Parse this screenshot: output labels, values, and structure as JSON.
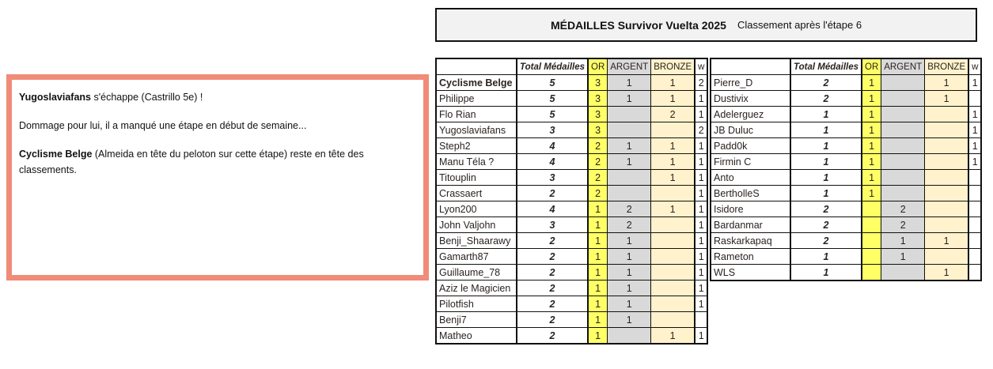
{
  "header": {
    "title": "MÉDAILLES Survivor Vuelta 2025",
    "subtitle": "Classement après l'étape 6"
  },
  "note": {
    "p1_bold": "Yugoslaviafans",
    "p1_rest": " s'échappe (Castrillo 5e) !",
    "p2": "Dommage pour lui, il a manqué une étape en début de semaine...",
    "p3_bold": "Cyclisme Belge",
    "p3_rest": " (Almeida en tête du peloton sur cette étape) reste en tête des classements."
  },
  "columns": {
    "name": "",
    "total": "Total Médailles",
    "or": "OR",
    "argent": "ARGENT",
    "bronze": "BRONZE",
    "w": "w"
  },
  "colors": {
    "or": "#ffff66",
    "argent": "#d9d9d9",
    "bronze": "#fff2cc",
    "note_border": "#f08c78"
  },
  "left_table": [
    {
      "name": "Cyclisme Belge",
      "total": "5",
      "or": "3",
      "argent": "1",
      "bronze": "1",
      "w": "2",
      "bold": true
    },
    {
      "name": "Philippe",
      "total": "5",
      "or": "3",
      "argent": "1",
      "bronze": "1",
      "w": "1"
    },
    {
      "name": "Flo Rian",
      "total": "5",
      "or": "3",
      "argent": "",
      "bronze": "2",
      "w": "1"
    },
    {
      "name": "Yugoslaviafans",
      "total": "3",
      "or": "3",
      "argent": "",
      "bronze": "",
      "w": "2"
    },
    {
      "name": "Steph2",
      "total": "4",
      "or": "2",
      "argent": "1",
      "bronze": "1",
      "w": "1"
    },
    {
      "name": "Manu Téla ?",
      "total": "4",
      "or": "2",
      "argent": "1",
      "bronze": "1",
      "w": "1"
    },
    {
      "name": "Titouplin",
      "total": "3",
      "or": "2",
      "argent": "",
      "bronze": "1",
      "w": "1"
    },
    {
      "name": "Crassaert",
      "total": "2",
      "or": "2",
      "argent": "",
      "bronze": "",
      "w": "1"
    },
    {
      "name": "Lyon200",
      "total": "4",
      "or": "1",
      "argent": "2",
      "bronze": "1",
      "w": "1"
    },
    {
      "name": "John Valjohn",
      "total": "3",
      "or": "1",
      "argent": "2",
      "bronze": "",
      "w": "1"
    },
    {
      "name": "Benji_Shaarawy",
      "total": "2",
      "or": "1",
      "argent": "1",
      "bronze": "",
      "w": "1"
    },
    {
      "name": "Gamarth87",
      "total": "2",
      "or": "1",
      "argent": "1",
      "bronze": "",
      "w": "1"
    },
    {
      "name": "Guillaume_78",
      "total": "2",
      "or": "1",
      "argent": "1",
      "bronze": "",
      "w": "1"
    },
    {
      "name": "Aziz le Magicien",
      "total": "2",
      "or": "1",
      "argent": "1",
      "bronze": "",
      "w": "1"
    },
    {
      "name": "Pilotfish",
      "total": "2",
      "or": "1",
      "argent": "1",
      "bronze": "",
      "w": "1"
    },
    {
      "name": "Benji7",
      "total": "2",
      "or": "1",
      "argent": "1",
      "bronze": "",
      "w": ""
    },
    {
      "name": "Matheo",
      "total": "2",
      "or": "1",
      "argent": "",
      "bronze": "1",
      "w": "1"
    }
  ],
  "right_table": [
    {
      "name": "Pierre_D",
      "total": "2",
      "or": "1",
      "argent": "",
      "bronze": "1",
      "w": "1"
    },
    {
      "name": "Dustivix",
      "total": "2",
      "or": "1",
      "argent": "",
      "bronze": "1",
      "w": ""
    },
    {
      "name": "Adelerguez",
      "total": "1",
      "or": "1",
      "argent": "",
      "bronze": "",
      "w": "1"
    },
    {
      "name": "JB Duluc",
      "total": "1",
      "or": "1",
      "argent": "",
      "bronze": "",
      "w": "1"
    },
    {
      "name": "Padd0k",
      "total": "1",
      "or": "1",
      "argent": "",
      "bronze": "",
      "w": "1"
    },
    {
      "name": "Firmin C",
      "total": "1",
      "or": "1",
      "argent": "",
      "bronze": "",
      "w": "1"
    },
    {
      "name": "Anto",
      "total": "1",
      "or": "1",
      "argent": "",
      "bronze": "",
      "w": ""
    },
    {
      "name": "BertholleS",
      "total": "1",
      "or": "1",
      "argent": "",
      "bronze": "",
      "w": ""
    },
    {
      "name": "Isidore",
      "total": "2",
      "or": "",
      "argent": "2",
      "bronze": "",
      "w": ""
    },
    {
      "name": "Bardanmar",
      "total": "2",
      "or": "",
      "argent": "2",
      "bronze": "",
      "w": ""
    },
    {
      "name": "Raskarkapaq",
      "total": "2",
      "or": "",
      "argent": "1",
      "bronze": "1",
      "w": ""
    },
    {
      "name": "Rameton",
      "total": "1",
      "or": "",
      "argent": "1",
      "bronze": "",
      "w": ""
    },
    {
      "name": "WLS",
      "total": "1",
      "or": "",
      "argent": "",
      "bronze": "1",
      "w": ""
    }
  ]
}
